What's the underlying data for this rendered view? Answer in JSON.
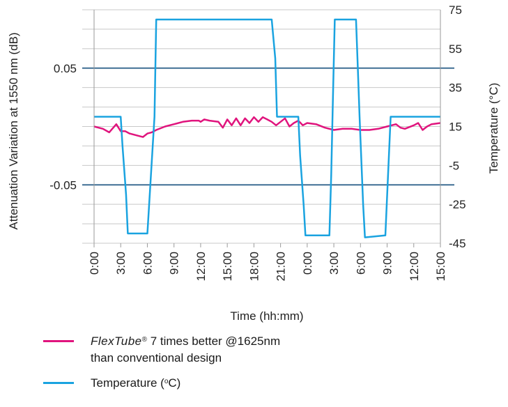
{
  "chart_data": {
    "type": "line",
    "xlabel": "Time (hh:mm)",
    "ylabel_left": "Attenuation Variation at 1550 nm (dB)",
    "ylabel_right": "Temperature (°C)",
    "x_tick_labels": [
      "0:00",
      "3:00",
      "6:00",
      "9:00",
      "12:00",
      "15:00",
      "18:00",
      "21:00",
      "0:00",
      "3:00",
      "6:00",
      "9:00",
      "12:00",
      "15:00"
    ],
    "x_hours": [
      0,
      39
    ],
    "left_axis": {
      "ticks": [
        "0.05",
        "-0.05"
      ],
      "tick_values": [
        0.05,
        -0.05
      ],
      "ylim": [
        -0.1,
        0.1
      ]
    },
    "right_axis": {
      "ticks": [
        "75",
        "55",
        "35",
        "15",
        "-5",
        "-25",
        "-45"
      ],
      "tick_values": [
        75,
        55,
        35,
        15,
        -5,
        -25,
        -45
      ],
      "ylim": [
        -45,
        75
      ]
    },
    "grid": true,
    "series": [
      {
        "name_parts": {
          "brand": "FlexTube",
          "mark": "®",
          "text": " 7 times better @1625nm",
          "line2": "than conventional design"
        },
        "axis": "left",
        "color": "#e0147d",
        "points": [
          [
            0,
            0.0
          ],
          [
            1,
            -0.002
          ],
          [
            1.7,
            -0.005
          ],
          [
            2.5,
            0.002
          ],
          [
            3,
            -0.004
          ],
          [
            3.5,
            -0.004
          ],
          [
            4,
            -0.006
          ],
          [
            5,
            -0.008
          ],
          [
            5.5,
            -0.009
          ],
          [
            6,
            -0.006
          ],
          [
            6.5,
            -0.005
          ],
          [
            7,
            -0.003
          ],
          [
            8,
            0.0
          ],
          [
            9,
            0.002
          ],
          [
            10,
            0.004
          ],
          [
            11,
            0.005
          ],
          [
            11.8,
            0.005
          ],
          [
            12,
            0.004
          ],
          [
            12.4,
            0.006
          ],
          [
            13,
            0.005
          ],
          [
            14,
            0.004
          ],
          [
            14.5,
            -0.001
          ],
          [
            15,
            0.006
          ],
          [
            15.5,
            0.001
          ],
          [
            16,
            0.007
          ],
          [
            16.5,
            0.001
          ],
          [
            17,
            0.007
          ],
          [
            17.5,
            0.003
          ],
          [
            18,
            0.008
          ],
          [
            18.5,
            0.004
          ],
          [
            19,
            0.008
          ],
          [
            19.5,
            0.006
          ],
          [
            20,
            0.004
          ],
          [
            20.5,
            0.001
          ],
          [
            21,
            0.004
          ],
          [
            21.5,
            0.007
          ],
          [
            22,
            0.0
          ],
          [
            22.5,
            0.003
          ],
          [
            23,
            0.005
          ],
          [
            23.5,
            0.001
          ],
          [
            24,
            0.003
          ],
          [
            25,
            0.002
          ],
          [
            26,
            -0.001
          ],
          [
            27,
            -0.003
          ],
          [
            28,
            -0.002
          ],
          [
            29,
            -0.002
          ],
          [
            30,
            -0.003
          ],
          [
            31,
            -0.003
          ],
          [
            32,
            -0.002
          ],
          [
            33,
            0.0
          ],
          [
            34,
            0.002
          ],
          [
            34.5,
            -0.001
          ],
          [
            35,
            -0.002
          ],
          [
            36,
            0.001
          ],
          [
            36.5,
            0.003
          ],
          [
            37,
            -0.003
          ],
          [
            37.5,
            0.0
          ],
          [
            38,
            0.002
          ],
          [
            39,
            0.003
          ]
        ]
      },
      {
        "name_parts": {
          "text": "Temperature (",
          "sup": "o",
          "end": "C)"
        },
        "axis": "right",
        "color": "#1aa3e0",
        "points": [
          [
            0,
            20
          ],
          [
            3,
            20
          ],
          [
            3.2,
            5
          ],
          [
            3.6,
            -20
          ],
          [
            3.8,
            -40
          ],
          [
            6.0,
            -40
          ],
          [
            6.4,
            -10
          ],
          [
            6.8,
            20
          ],
          [
            7.0,
            70
          ],
          [
            14,
            70
          ],
          [
            20,
            70
          ],
          [
            20.4,
            50
          ],
          [
            20.6,
            20
          ],
          [
            23,
            20
          ],
          [
            23.2,
            0
          ],
          [
            23.6,
            -25
          ],
          [
            23.8,
            -41
          ],
          [
            26.5,
            -41
          ],
          [
            26.7,
            -10
          ],
          [
            26.9,
            30
          ],
          [
            27.1,
            70
          ],
          [
            29.5,
            70
          ],
          [
            29.7,
            45
          ],
          [
            29.9,
            20
          ],
          [
            30.3,
            -25
          ],
          [
            30.5,
            -42
          ],
          [
            32.8,
            -41
          ],
          [
            33.2,
            0
          ],
          [
            33.4,
            20
          ],
          [
            39,
            20
          ]
        ]
      }
    ]
  }
}
